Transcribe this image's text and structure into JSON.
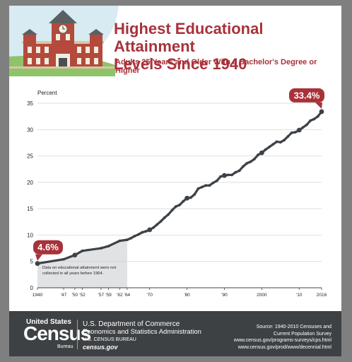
{
  "header": {
    "title_line1": "Highest Educational Attainment",
    "title_line2": "Levels Since 1940",
    "subtitle": "Adults 25 Years and Older With a Bachelor's Degree or Higher"
  },
  "chart_data": {
    "type": "line",
    "title": "Highest Educational Attainment Levels Since 1940",
    "subtitle": "Adults 25 Years and Older With a Bachelor's Degree or Higher",
    "ylabel": "Percent",
    "xlabel": "",
    "ylim": [
      0,
      35
    ],
    "xlim": [
      1940,
      2016
    ],
    "yticks": [
      0,
      5,
      10,
      15,
      20,
      25,
      30,
      35
    ],
    "xticks": [
      {
        "value": 1940,
        "label": "1940"
      },
      {
        "value": 1947,
        "label": "'47"
      },
      {
        "value": 1950,
        "label": "'50"
      },
      {
        "value": 1952,
        "label": "'52"
      },
      {
        "value": 1957,
        "label": "'57"
      },
      {
        "value": 1959,
        "label": "'59"
      },
      {
        "value": 1962,
        "label": "'62"
      },
      {
        "value": 1964,
        "label": "'64"
      },
      {
        "value": 1970,
        "label": "'70"
      },
      {
        "value": 1980,
        "label": "'80"
      },
      {
        "value": 1990,
        "label": "'90"
      },
      {
        "value": 2000,
        "label": "2000"
      },
      {
        "value": 2010,
        "label": "'10"
      },
      {
        "value": 2016,
        "label": "2016"
      }
    ],
    "grid": true,
    "shaded_range": [
      1940,
      1964
    ],
    "annotation": "Data on educational attainment were not collected in all years before 1964.",
    "callouts": [
      {
        "x": 1940,
        "label": "4.6%"
      },
      {
        "x": 2016,
        "label": "33.4%"
      }
    ],
    "series": [
      {
        "x": [
          1940,
          1947,
          1950,
          1952,
          1957,
          1959,
          1962,
          1964,
          1965,
          1966,
          1967,
          1968,
          1969,
          1970,
          1971,
          1972,
          1973,
          1974,
          1975,
          1976,
          1977,
          1978,
          1979,
          1980,
          1981,
          1982,
          1983,
          1984,
          1985,
          1986,
          1987,
          1988,
          1989,
          1990,
          1991,
          1992,
          1993,
          1994,
          1995,
          1996,
          1997,
          1998,
          1999,
          2000,
          2001,
          2002,
          2003,
          2004,
          2005,
          2006,
          2007,
          2008,
          2009,
          2010,
          2011,
          2012,
          2013,
          2014,
          2015,
          2016
        ],
        "values": [
          4.6,
          5.4,
          6.2,
          7.0,
          7.5,
          7.9,
          8.9,
          9.1,
          9.4,
          9.8,
          10.1,
          10.5,
          10.7,
          11.0,
          11.4,
          12.0,
          12.6,
          13.3,
          13.9,
          14.7,
          15.4,
          15.7,
          16.4,
          17.0,
          17.1,
          17.7,
          18.8,
          19.1,
          19.4,
          19.4,
          19.9,
          20.3,
          21.1,
          21.3,
          21.4,
          21.4,
          21.9,
          22.2,
          23.0,
          23.6,
          23.9,
          24.4,
          25.2,
          25.6,
          26.2,
          26.7,
          27.2,
          27.7,
          27.6,
          28.0,
          28.7,
          29.4,
          29.5,
          29.9,
          30.4,
          30.9,
          31.7,
          32.0,
          32.5,
          33.4
        ],
        "markers_at": [
          1940,
          1950,
          1960,
          1970,
          1980,
          1990,
          2000,
          2010,
          2016
        ]
      }
    ]
  },
  "footer": {
    "logo_top": "United States",
    "logo_main": "Census",
    "logo_sub": "Bureau",
    "dept_line1": "U.S. Department of Commerce",
    "dept_line2": "Economics and Statistics Administration",
    "dept_line3": "U.S. CENSUS BUREAU",
    "dept_line4": "census.gov",
    "source_line1": "Source:  1940-2010 Censuses and",
    "source_line2": "Current Population Survey",
    "source_line3": "www.census.gov/programs-surveys/cps.html",
    "source_line4": "www.census.gov/prod/www/decennial.html"
  },
  "colors": {
    "accent": "#a8323a",
    "line": "#3d4247",
    "shade": "#e1e2e3",
    "footer_bg": "#3d4144",
    "page_bg": "#7f7f80"
  }
}
